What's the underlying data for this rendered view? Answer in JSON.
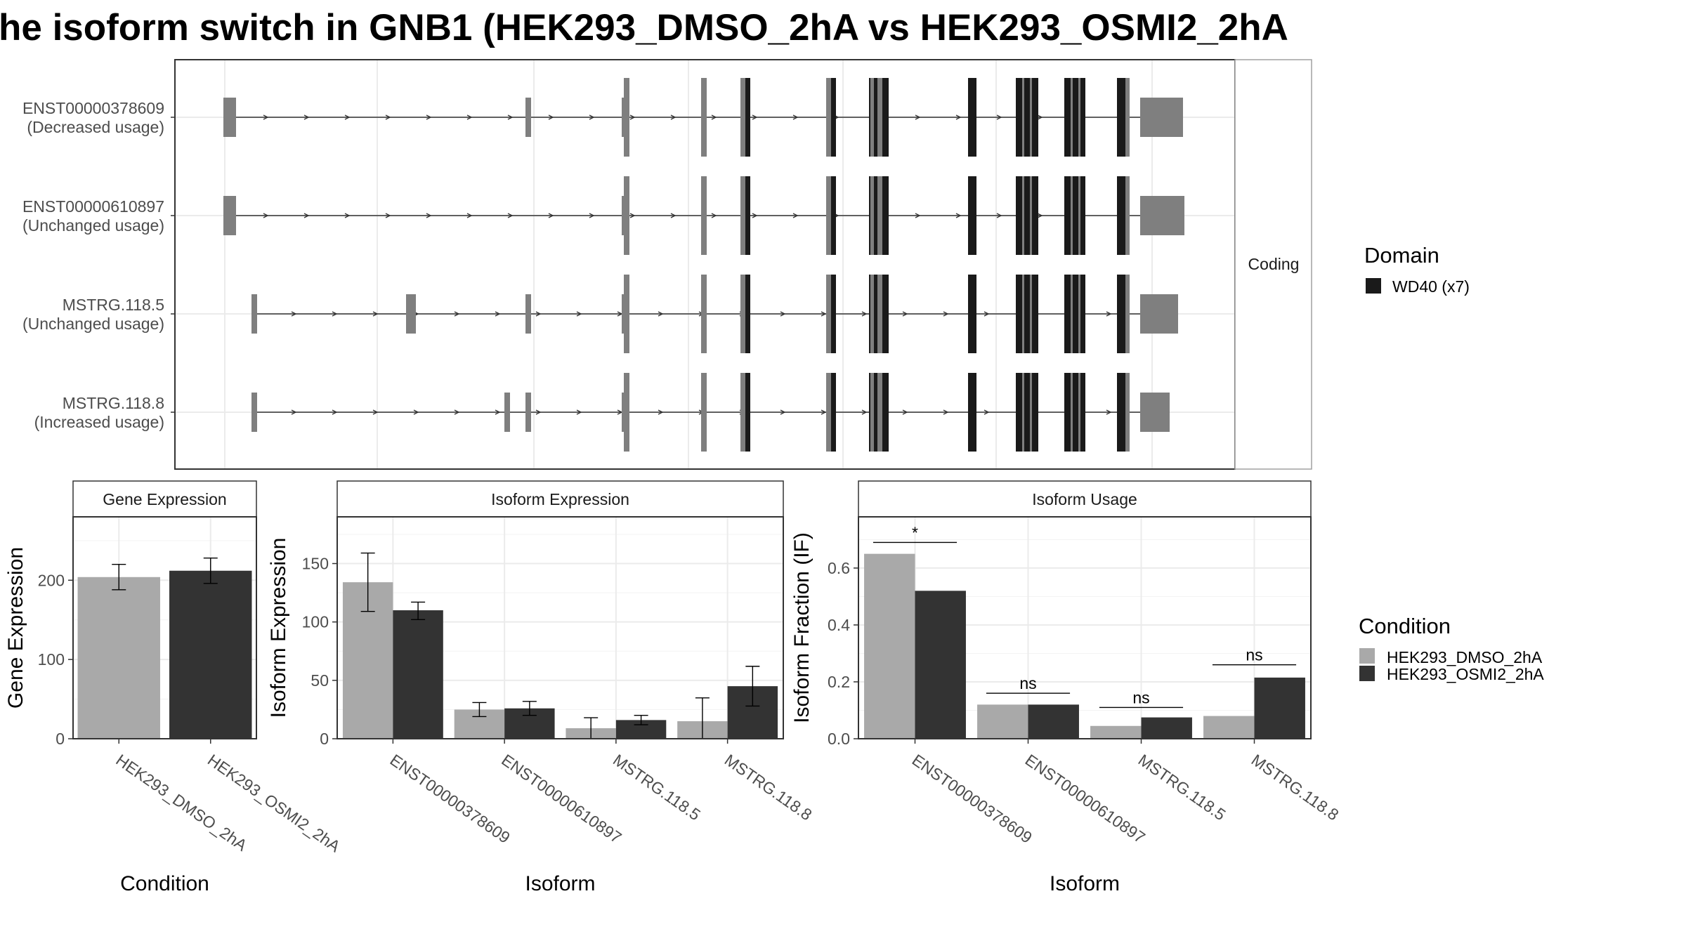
{
  "title": "he isoform switch in GNB1 (HEK293_DMSO_2hA vs HEK293_OSMI2_2hA",
  "colors": {
    "dmso": "#a9a9a9",
    "osmi2": "#333333",
    "utr": "#7f7f7f",
    "domain": "#1a1a1a",
    "grid": "#ebebeb",
    "panel_border": "#333333",
    "strip_fill": "#ffffff"
  },
  "chart_data": [
    {
      "type": "gene-structure",
      "strip_label": "Coding",
      "transcripts": [
        {
          "name": "ENST00000378609",
          "usage": "(Decreased usage)"
        },
        {
          "name": "ENST00000610897",
          "usage": "(Unchanged usage)"
        },
        {
          "name": "MSTRG.118.5",
          "usage": "(Unchanged usage)"
        },
        {
          "name": "MSTRG.118.8",
          "usage": "(Increased usage)"
        }
      ],
      "legend": {
        "title": "Domain",
        "entries": [
          {
            "label": "WD40 (x7)",
            "color": "#1a1a1a"
          }
        ]
      }
    },
    {
      "type": "bar",
      "strip_label": "Gene Expression",
      "xlabel": "Condition",
      "ylabel": "Gene Expression",
      "ylim": [
        0,
        280
      ],
      "yticks": [
        0,
        100,
        200
      ],
      "categories": [
        "HEK293_DMSO_2hA",
        "HEK293_OSMI2_2hA"
      ],
      "values": [
        204,
        212
      ],
      "errors": [
        [
          188,
          220
        ],
        [
          196,
          228
        ]
      ]
    },
    {
      "type": "bar",
      "strip_label": "Isoform Expression",
      "xlabel": "Isoform",
      "ylabel": "Isoform Expression",
      "ylim": [
        0,
        190
      ],
      "yticks": [
        0,
        50,
        100,
        150
      ],
      "categories": [
        "ENST00000378609",
        "ENST00000610897",
        "MSTRG.118.5",
        "MSTRG.118.8"
      ],
      "series": [
        {
          "name": "HEK293_DMSO_2hA",
          "values": [
            134,
            25,
            9,
            15
          ],
          "errors": [
            [
              109,
              159
            ],
            [
              19,
              31
            ],
            [
              0,
              18
            ],
            [
              0,
              35
            ]
          ]
        },
        {
          "name": "HEK293_OSMI2_2hA",
          "values": [
            110,
            26,
            16,
            45
          ],
          "errors": [
            [
              102,
              117
            ],
            [
              20,
              32
            ],
            [
              12,
              20
            ],
            [
              28,
              62
            ]
          ]
        }
      ]
    },
    {
      "type": "bar",
      "strip_label": "Isoform Usage",
      "xlabel": "Isoform",
      "ylabel": "Isoform Fraction (IF)",
      "ylim": [
        0,
        0.78
      ],
      "yticks": [
        "0.0",
        "0.2",
        "0.4",
        "0.6"
      ],
      "categories": [
        "ENST00000378609",
        "ENST00000610897",
        "MSTRG.118.5",
        "MSTRG.118.8"
      ],
      "series": [
        {
          "name": "HEK293_DMSO_2hA",
          "values": [
            0.65,
            0.12,
            0.045,
            0.08
          ]
        },
        {
          "name": "HEK293_OSMI2_2hA",
          "values": [
            0.52,
            0.12,
            0.075,
            0.215
          ]
        }
      ],
      "significance": [
        {
          "label": "*",
          "height": 0.69
        },
        {
          "label": "ns",
          "height": 0.16
        },
        {
          "label": "ns",
          "height": 0.11
        },
        {
          "label": "ns",
          "height": 0.26
        }
      ],
      "legend": {
        "title": "Condition",
        "entries": [
          "HEK293_DMSO_2hA",
          "HEK293_OSMI2_2hA"
        ]
      }
    }
  ]
}
